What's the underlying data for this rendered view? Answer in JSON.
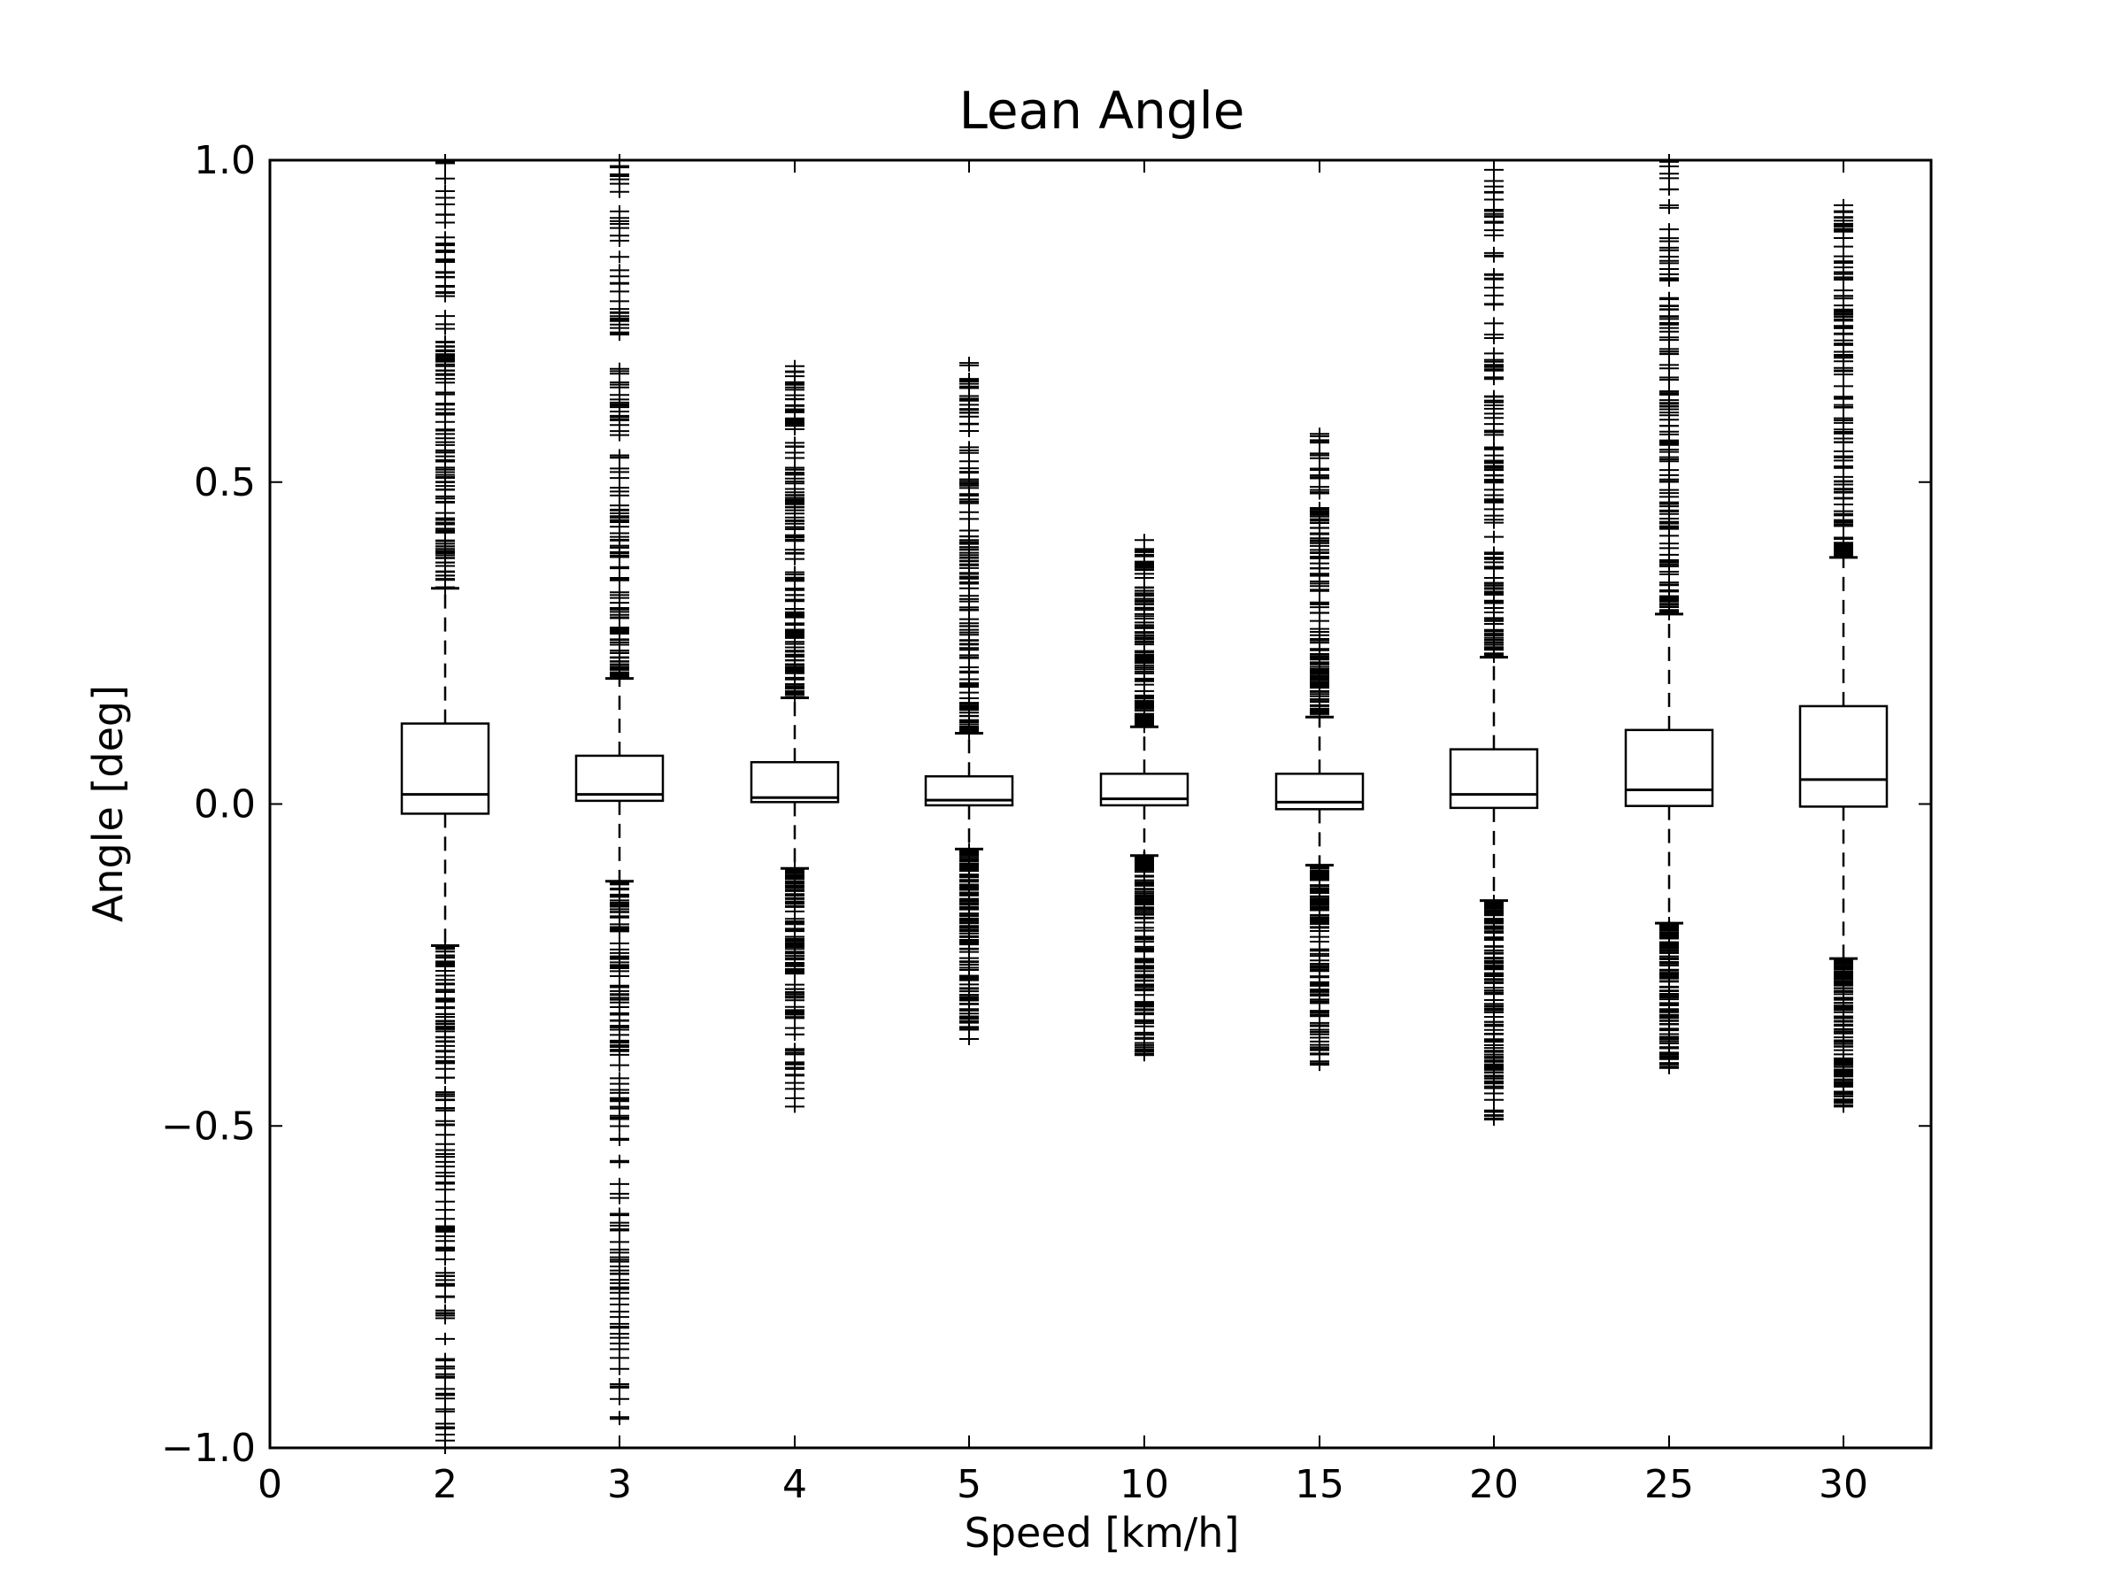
{
  "chart_data": {
    "type": "box",
    "title": "Lean Angle",
    "xlabel": "Speed [km/h]",
    "ylabel": "Angle [deg]",
    "ylim": [
      -1.0,
      1.0
    ],
    "yticks": [
      {
        "value": -1.0,
        "label": "−1.0"
      },
      {
        "value": -0.5,
        "label": "−0.5"
      },
      {
        "value": 0.0,
        "label": "0.0"
      },
      {
        "value": 0.5,
        "label": "0.5"
      },
      {
        "value": 1.0,
        "label": "1.0"
      }
    ],
    "xtick_labels": [
      "0",
      "2",
      "3",
      "4",
      "5",
      "10",
      "15",
      "20",
      "25",
      "30"
    ],
    "grid": false,
    "categories": [
      "2",
      "3",
      "4",
      "5",
      "10",
      "15",
      "20",
      "25",
      "30"
    ],
    "boxes": [
      {
        "category": "2",
        "q1": -0.015,
        "median": 0.015,
        "q3": 0.125,
        "whisker_low": -0.22,
        "whisker_high": 0.335,
        "outliers_low": [
          -0.22,
          -1.0
        ],
        "outliers_high": [
          0.335,
          1.0
        ]
      },
      {
        "category": "3",
        "q1": 0.005,
        "median": 0.015,
        "q3": 0.075,
        "whisker_low": -0.12,
        "whisker_high": 0.195,
        "outliers_low": [
          -0.12,
          -0.955
        ],
        "outliers_high": [
          0.195,
          1.0
        ]
      },
      {
        "category": "4",
        "q1": 0.003,
        "median": 0.01,
        "q3": 0.065,
        "whisker_low": -0.1,
        "whisker_high": 0.165,
        "outliers_low": [
          -0.1,
          -0.47
        ],
        "outliers_high": [
          0.165,
          0.68
        ]
      },
      {
        "category": "5",
        "q1": -0.002,
        "median": 0.006,
        "q3": 0.043,
        "whisker_low": -0.07,
        "whisker_high": 0.11,
        "outliers_low": [
          -0.07,
          -0.365
        ],
        "outliers_high": [
          0.11,
          0.685
        ]
      },
      {
        "category": "10",
        "q1": -0.002,
        "median": 0.008,
        "q3": 0.047,
        "whisker_low": -0.08,
        "whisker_high": 0.12,
        "outliers_low": [
          -0.08,
          -0.39
        ],
        "outliers_high": [
          0.12,
          0.41
        ]
      },
      {
        "category": "15",
        "q1": -0.008,
        "median": 0.003,
        "q3": 0.047,
        "whisker_low": -0.095,
        "whisker_high": 0.135,
        "outliers_low": [
          -0.095,
          -0.405
        ],
        "outliers_high": [
          0.135,
          0.575
        ]
      },
      {
        "category": "20",
        "q1": -0.006,
        "median": 0.015,
        "q3": 0.085,
        "whisker_low": -0.15,
        "whisker_high": 0.228,
        "outliers_low": [
          -0.15,
          -0.49
        ],
        "outliers_high": [
          0.228,
          0.985
        ]
      },
      {
        "category": "25",
        "q1": -0.003,
        "median": 0.022,
        "q3": 0.115,
        "whisker_low": -0.185,
        "whisker_high": 0.295,
        "outliers_low": [
          -0.185,
          -0.41
        ],
        "outliers_high": [
          0.295,
          1.0
        ]
      },
      {
        "category": "30",
        "q1": -0.004,
        "median": 0.038,
        "q3": 0.152,
        "whisker_low": -0.24,
        "whisker_high": 0.383,
        "outliers_low": [
          -0.24,
          -0.47
        ],
        "outliers_high": [
          0.383,
          0.93
        ]
      }
    ]
  }
}
